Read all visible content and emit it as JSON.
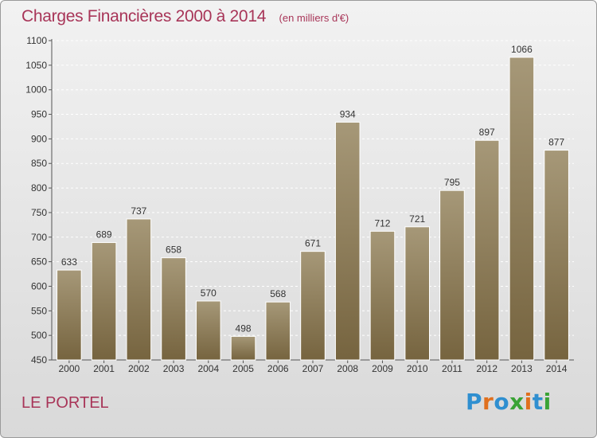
{
  "title": "Charges Financières 2000 à 2014",
  "unit": "(en milliers d'€)",
  "commune": "LE PORTEL",
  "logo": {
    "text": "Proxiti",
    "colors": [
      "#2f8fd0",
      "#e0701e",
      "#2f8fd0",
      "#3aa335",
      "#e0701e",
      "#2f8fd0",
      "#3aa335"
    ]
  },
  "chart_data": {
    "type": "bar",
    "categories": [
      "2000",
      "2001",
      "2002",
      "2003",
      "2004",
      "2005",
      "2006",
      "2007",
      "2008",
      "2009",
      "2010",
      "2011",
      "2012",
      "2013",
      "2014"
    ],
    "values": [
      633,
      689,
      737,
      658,
      570,
      498,
      568,
      671,
      934,
      712,
      721,
      795,
      897,
      1066,
      877
    ],
    "ylim": [
      450,
      1100
    ],
    "yticks": [
      450,
      500,
      550,
      600,
      650,
      700,
      750,
      800,
      850,
      900,
      950,
      1000,
      1050,
      1100
    ],
    "grid": true,
    "bar_color_top": "#a69878",
    "bar_color_bottom": "#76643f"
  }
}
